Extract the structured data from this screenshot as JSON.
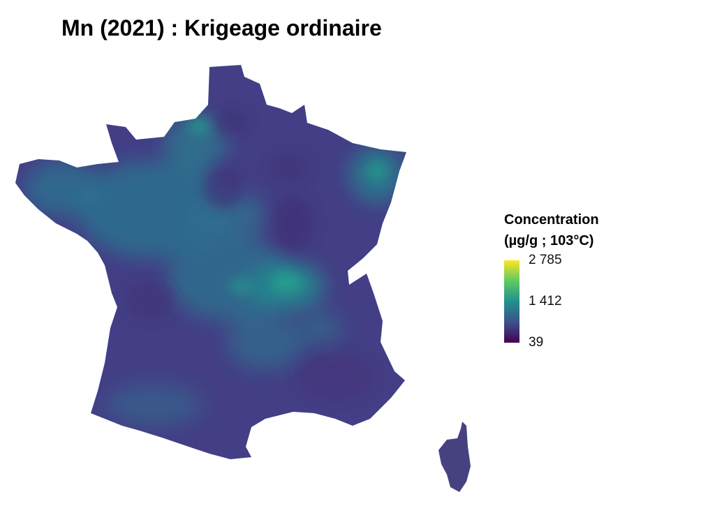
{
  "title": "Mn (2021) : Krigeage ordinaire",
  "legend": {
    "title_line1": "Concentration",
    "title_line2": "(µg/g ; 103°C)",
    "colormap": [
      "#440154",
      "#3b528b",
      "#21918c",
      "#5ec962",
      "#fde725"
    ],
    "ticks": [
      {
        "label": "2 785",
        "value": 2785
      },
      {
        "label": "1 412",
        "value": 1412
      },
      {
        "label": "39",
        "value": 39
      }
    ],
    "min": 39,
    "max": 2785
  },
  "map": {
    "region": "France",
    "base_color": "#433e85",
    "mid_color": "#2b6b8e"
  }
}
